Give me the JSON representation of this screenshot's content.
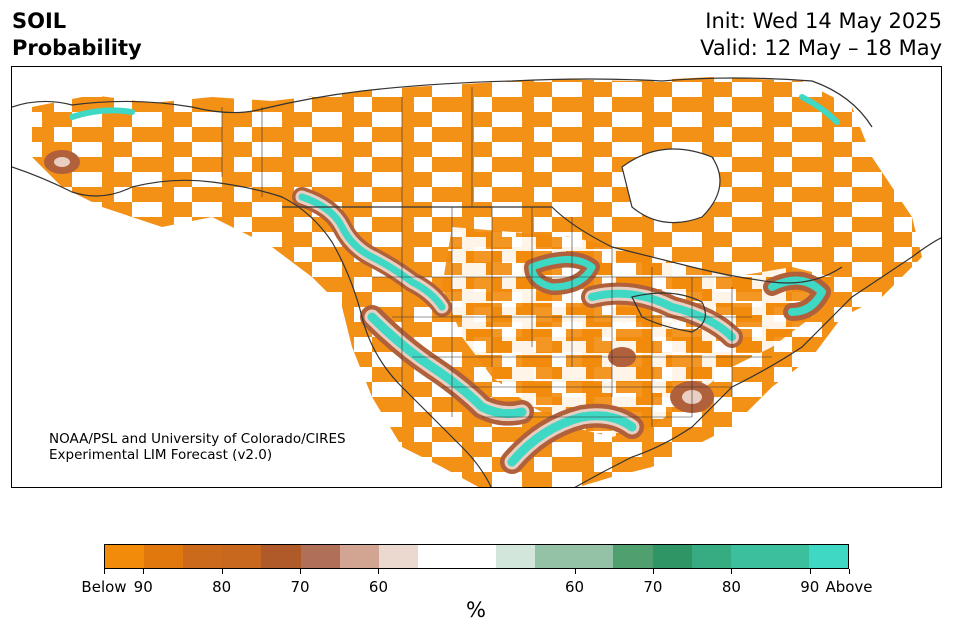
{
  "header": {
    "title_line1": "SOIL",
    "title_line2": "Probability",
    "init_text": "Init: Wed 14 May 2025",
    "valid_text": "Valid: 12 May – 18 May"
  },
  "credit": {
    "line1": "NOAA/PSL and University of Colorado/CIRES",
    "line2": "Experimental LIM Forecast (v2.0)"
  },
  "colorbar": {
    "unit": "%",
    "colors": [
      "#f28a0a",
      "#e0780e",
      "#cc6a1c",
      "#c8681e",
      "#b05a2a",
      "#b07058",
      "#d2a593",
      "#ebd9d0",
      "#ffffff",
      "#ffffff",
      "#d2e6dc",
      "#93c2a6",
      "#93c2a6",
      "#4f9f6f",
      "#2f9564",
      "#37ab82",
      "#3cbf9c",
      "#3cbf9c",
      "#3ed8c4"
    ],
    "ticks": [
      "Below",
      "90",
      "80",
      "70",
      "60",
      "60",
      "70",
      "80",
      "90",
      "Above"
    ]
  },
  "map": {
    "below_color": "#f28a0a",
    "brown_color": "#b0603a",
    "tan_color": "#e8cfc2",
    "above_color": "#3ed8c4",
    "green_color": "#3cae88",
    "line_color": "#333333"
  }
}
